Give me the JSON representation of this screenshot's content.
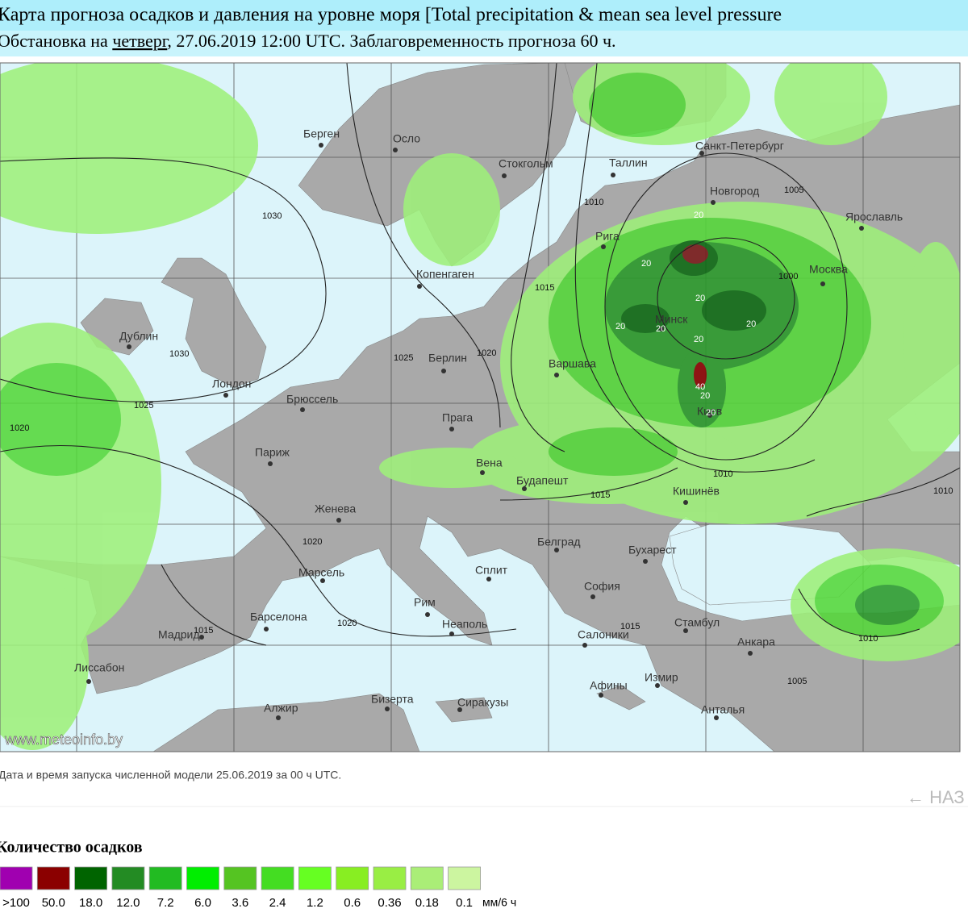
{
  "header": {
    "title": "Карта прогноза осадков и давления на уровне моря [Total precipitation & mean sea level pressure",
    "subtitle_before": "Обстановка на ",
    "subtitle_link": "четверг",
    "subtitle_after": ", 27.06.2019 12:00 UTC. Заблаговременность прогноза 60 ч."
  },
  "map": {
    "watermark": "www.meteoinfo.by",
    "cities": [
      "Берген",
      "Осло",
      "Стокгольм",
      "Таллин",
      "Санкт-Петербург",
      "Новгород",
      "Ярославль",
      "Рига",
      "Москва",
      "Копенгаген",
      "Дублин",
      "Лондон",
      "Берлин",
      "Варшава",
      "Брюссель",
      "Прага",
      "Париж",
      "Вена",
      "Будапешт",
      "Кишинёв",
      "Женева",
      "Белград",
      "Бухарест",
      "Марсель",
      "Сплит",
      "София",
      "Рим",
      "Барселона",
      "Мадрид",
      "Неаполь",
      "Стамбул",
      "Салоники",
      "Анкара",
      "Лиссабон",
      "Измир",
      "Афины",
      "Алжир",
      "Бизерта",
      "Сиракузы",
      "Анталья",
      "Минск",
      "Киев"
    ],
    "isobar_labels": [
      "1030",
      "1010",
      "1005",
      "1015",
      "1000",
      "1030",
      "1025",
      "1020",
      "1025",
      "1020",
      "1010",
      "1015",
      "1010",
      "1020",
      "1020",
      "1015",
      "1015",
      "1010",
      "1005"
    ],
    "precip_labels": [
      "20",
      "20",
      "20",
      "20",
      "20",
      "20",
      "20",
      "40",
      "20",
      "20"
    ]
  },
  "caption": "Дата и время запуска численной модели 25.06.2019 за 00 ч UTC.",
  "back_link": "← НАЗ",
  "legend": {
    "title": "Количество осадков",
    "items": [
      {
        "label": ">100",
        "color": "#a000b0"
      },
      {
        "label": "50.0",
        "color": "#8b0000"
      },
      {
        "label": "18.0",
        "color": "#006400"
      },
      {
        "label": "12.0",
        "color": "#238b23"
      },
      {
        "label": "7.2",
        "color": "#22bb22"
      },
      {
        "label": "6.0",
        "color": "#00ee00"
      },
      {
        "label": "3.6",
        "color": "#55c422"
      },
      {
        "label": "2.4",
        "color": "#44dd22"
      },
      {
        "label": "1.2",
        "color": "#66ff22"
      },
      {
        "label": "0.6",
        "color": "#88ee22"
      },
      {
        "label": "0.36",
        "color": "#99ee44"
      },
      {
        "label": "0.18",
        "color": "#aaee77"
      },
      {
        "label": "0.1",
        "color": "#ccf5a0"
      }
    ],
    "unit": "мм/6 ч"
  }
}
